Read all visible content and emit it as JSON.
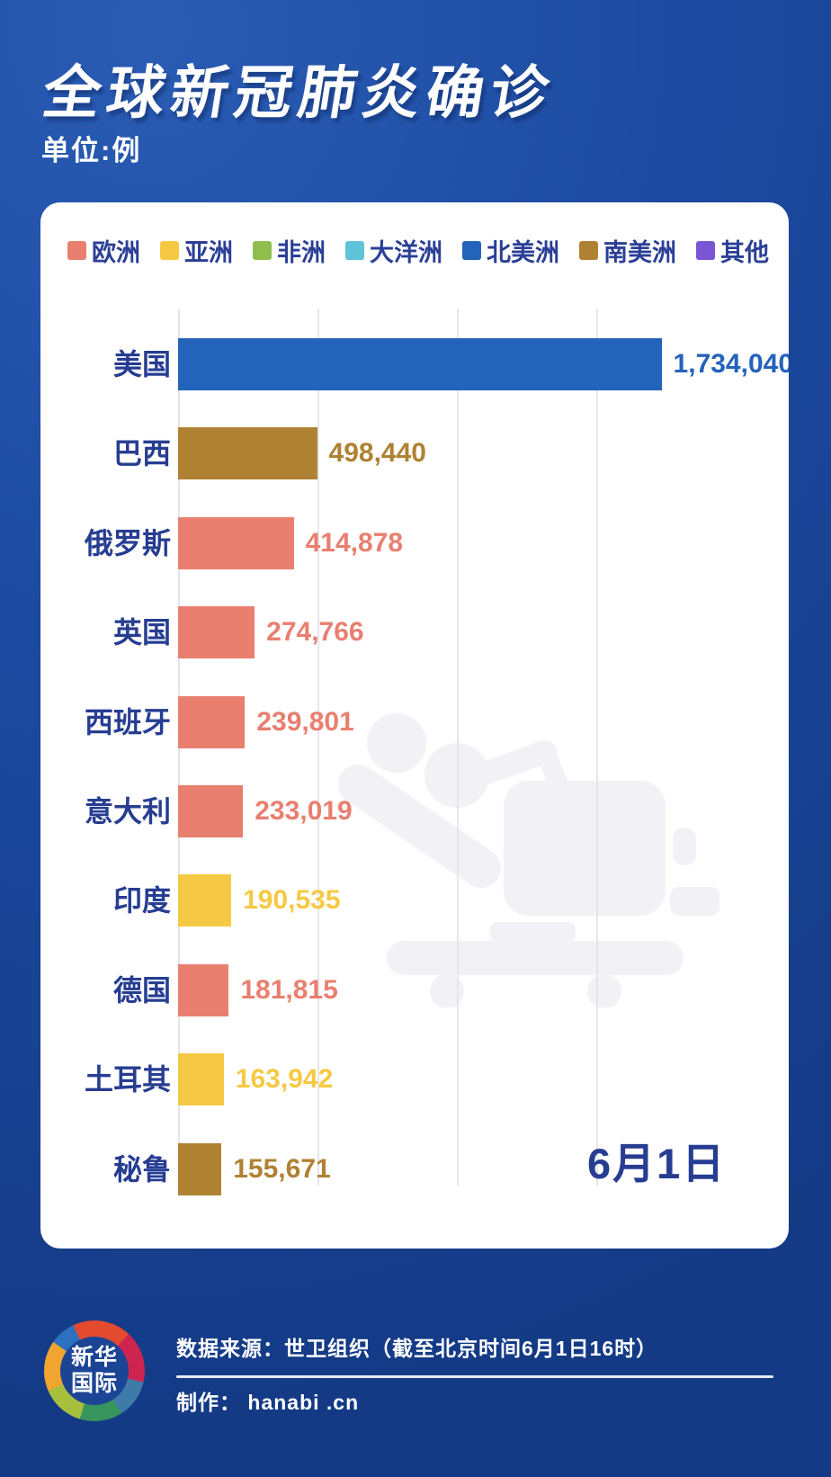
{
  "header": {
    "title": "全球新冠肺炎确诊",
    "subtitle": "单位:例"
  },
  "legend": {
    "items": [
      {
        "label": "欧洲",
        "color": "#e97f6f"
      },
      {
        "label": "亚洲",
        "color": "#f6c944"
      },
      {
        "label": "非洲",
        "color": "#8fbe4e"
      },
      {
        "label": "大洋洲",
        "color": "#5fc4d8"
      },
      {
        "label": "北美洲",
        "color": "#2463ba"
      },
      {
        "label": "南美洲",
        "color": "#af8233"
      },
      {
        "label": "其他",
        "color": "#7a56d4"
      }
    ]
  },
  "chart_data": {
    "type": "bar",
    "orientation": "horizontal",
    "title": "全球新冠肺炎确诊",
    "unit_label": "单位:例",
    "categories": [
      "美国",
      "巴西",
      "俄罗斯",
      "英国",
      "西班牙",
      "意大利",
      "印度",
      "德国",
      "土耳其",
      "秘鲁"
    ],
    "values": [
      1734040,
      498440,
      414878,
      274766,
      239801,
      233019,
      190535,
      181815,
      163942,
      155671
    ],
    "value_labels": [
      "1,734,040",
      "498,440",
      "414,878",
      "274,766",
      "239,801",
      "233,019",
      "190,535",
      "181,815",
      "163,942",
      "155,671"
    ],
    "continents": [
      "北美洲",
      "南美洲",
      "欧洲",
      "欧洲",
      "欧洲",
      "欧洲",
      "亚洲",
      "欧洲",
      "亚洲",
      "南美洲"
    ],
    "bar_colors": [
      "#2463ba",
      "#af8233",
      "#e97f6f",
      "#e97f6f",
      "#e97f6f",
      "#e97f6f",
      "#f6c944",
      "#e97f6f",
      "#f6c944",
      "#af8233"
    ],
    "category_label_color": "#263d92",
    "xlim": [
      0,
      2170000
    ],
    "gridline_interval": 500000,
    "gridlines": [
      0,
      500000,
      1000000,
      1500000
    ],
    "grid": "vertical-only",
    "legend_position": "top",
    "date_label": "6月1日",
    "watermark": "hospital-bed-icon"
  },
  "footer": {
    "logo_line1": "新华",
    "logo_line2": "国际",
    "source": "数据来源：世卫组织（截至北京时间6月1日16时）",
    "maker": "制作：  hanabi .cn"
  }
}
